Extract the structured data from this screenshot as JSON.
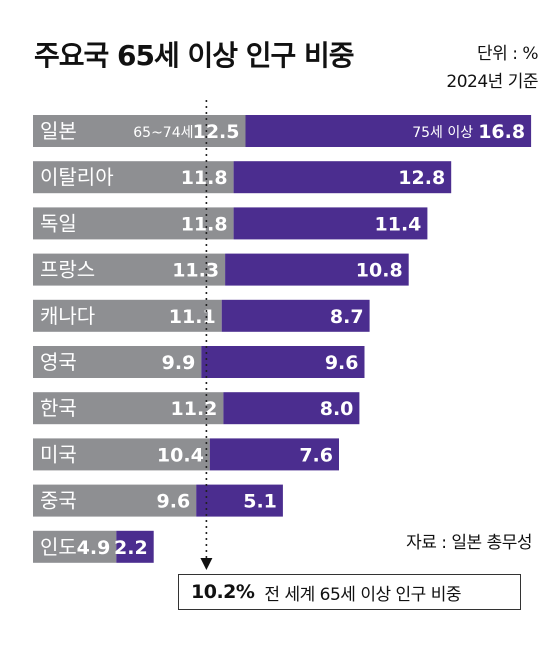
{
  "header": {
    "title": "주요국 65세 이상 인구 비중",
    "unit": "단위 : %",
    "base_year": "2024년 기준"
  },
  "source": "자료 : 일본 총무성",
  "callout": {
    "value": "10.2%",
    "text": "전 세계 65세 이상 인구 비중"
  },
  "colors": {
    "gray": "#8e8f92",
    "purple": "#4b2d8f",
    "text": "#111111"
  },
  "chart_data": {
    "type": "bar",
    "stacked": true,
    "orientation": "horizontal",
    "categories": [
      "일본",
      "이탈리아",
      "독일",
      "프랑스",
      "캐나다",
      "영국",
      "한국",
      "미국",
      "중국",
      "인도"
    ],
    "series": [
      {
        "name": "65~74세",
        "values": [
          12.5,
          11.8,
          11.8,
          11.3,
          11.1,
          9.9,
          11.2,
          10.4,
          9.6,
          4.9
        ]
      },
      {
        "name": "75세 이상",
        "values": [
          16.8,
          12.8,
          11.4,
          10.8,
          8.7,
          9.6,
          8.0,
          7.6,
          5.1,
          2.2
        ]
      }
    ],
    "value_labels": {
      "65~74세": [
        "12.5",
        "11.8",
        "11.8",
        "11.3",
        "11.1",
        "9.9",
        "11.2",
        "10.4",
        "9.6",
        "4.9"
      ],
      "75세 이상": [
        "16.8",
        "12.8",
        "11.4",
        "10.8",
        "8.7",
        "9.6",
        "8.0",
        "7.6",
        "5.1",
        "2.2"
      ]
    },
    "reference_line": {
      "value": 10.2
    }
  }
}
